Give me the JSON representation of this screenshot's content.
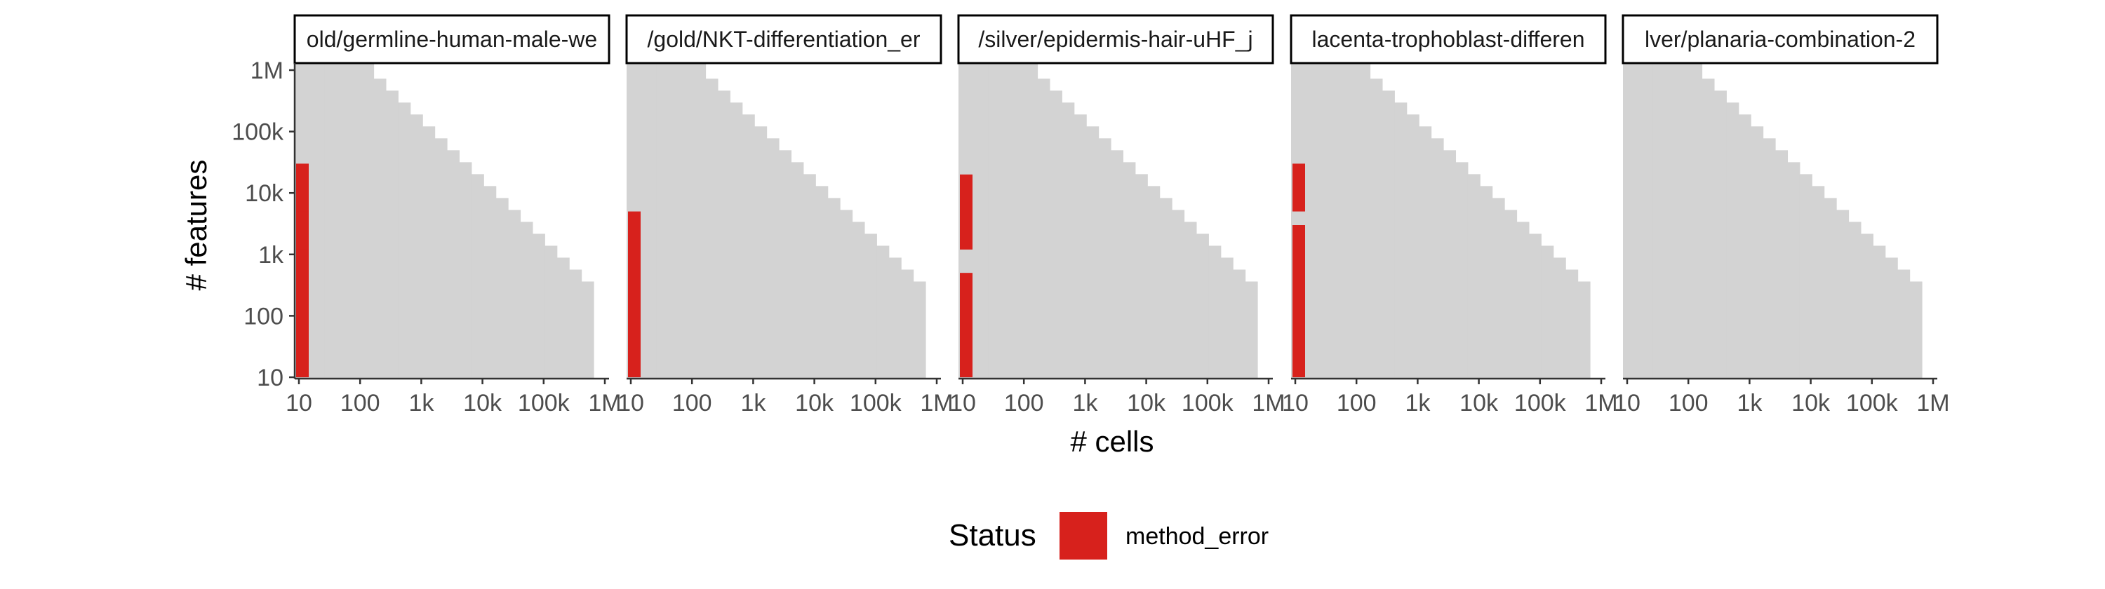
{
  "chart_data": {
    "type": "heatmap",
    "xlabel": "# cells",
    "ylabel": "# features",
    "x_scale": "log10",
    "y_scale": "log10",
    "xlim": [
      10,
      1000000
    ],
    "ylim": [
      10,
      1000000
    ],
    "x_ticks": [
      {
        "value": 10,
        "label": "10"
      },
      {
        "value": 100,
        "label": "100"
      },
      {
        "value": 1000,
        "label": "1k"
      },
      {
        "value": 10000,
        "label": "10k"
      },
      {
        "value": 100000,
        "label": "100k"
      },
      {
        "value": 1000000,
        "label": "1M"
      }
    ],
    "y_ticks": [
      {
        "value": 10,
        "label": "10"
      },
      {
        "value": 100,
        "label": "100"
      },
      {
        "value": 1000,
        "label": "1k"
      },
      {
        "value": 10000,
        "label": "10k"
      },
      {
        "value": 100000,
        "label": "100k"
      },
      {
        "value": 1000000,
        "label": "1M"
      }
    ],
    "background_color": "#d3d3d3",
    "error_color": "#d7211c",
    "legend": {
      "title": "Status",
      "placement": "bottom",
      "entries": [
        {
          "label": "method_error",
          "color": "#d7211c"
        }
      ]
    },
    "panels": [
      {
        "title": "old/germline-human-male-we",
        "max_cells": 20,
        "error_runs": [
          [
            10,
            30000
          ],
          [
            10,
            5000
          ],
          [
            10,
            1200
          ]
        ]
      },
      {
        "title": "/gold/NKT-differentiation_er",
        "max_cells": 20,
        "error_runs": [
          [
            10,
            5000
          ]
        ]
      },
      {
        "title": "/silver/epidermis-hair-uHF_j",
        "max_cells": 20,
        "error_runs": [
          [
            1200,
            20000
          ],
          [
            10,
            500
          ]
        ]
      },
      {
        "title": "lacenta-trophoblast-differen",
        "max_cells": 20,
        "error_runs": [
          [
            5000,
            30000
          ],
          [
            10,
            3000
          ]
        ]
      },
      {
        "title": "lver/planaria-combination-2",
        "max_cells": 0,
        "error_runs": []
      }
    ]
  }
}
